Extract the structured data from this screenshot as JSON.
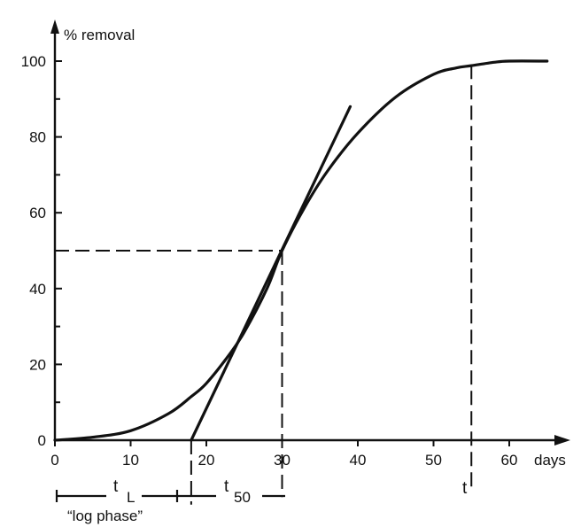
{
  "chart_data": {
    "type": "line",
    "title": "",
    "ylabel": "% removal",
    "xlabel": "days",
    "xlim": [
      0,
      67
    ],
    "ylim": [
      0,
      100
    ],
    "x_ticks": [
      0,
      10,
      20,
      30,
      40,
      50,
      60
    ],
    "x_tick_labels": [
      "0",
      "10",
      "20",
      "30",
      "40",
      "50",
      "60"
    ],
    "y_ticks": [
      0,
      20,
      40,
      60,
      80,
      100
    ],
    "y_tick_labels": [
      "0",
      "20",
      "40",
      "60",
      "80",
      "100"
    ],
    "y_minor_step": 10,
    "grid": false,
    "series": [
      {
        "x": [
          0,
          5,
          10,
          15,
          18,
          20,
          23,
          25,
          28,
          30,
          33,
          36,
          40,
          45,
          50,
          53,
          55,
          58,
          60,
          65
        ],
        "y": [
          0,
          0.8,
          2.5,
          7,
          11.5,
          15,
          22.5,
          28.5,
          40,
          50,
          61.5,
          71,
          81,
          90.5,
          96.5,
          98.2,
          98.8,
          99.7,
          100,
          100
        ]
      }
    ],
    "tangent_line": {
      "x": [
        18,
        39
      ],
      "y": [
        0,
        88
      ]
    },
    "reference_lines": [
      {
        "kind": "horizontal",
        "y": 50,
        "x_from": 0,
        "x_to": 30,
        "style": "dashed"
      },
      {
        "kind": "vertical",
        "x": 30,
        "y_from": 50,
        "y_to": -15,
        "style": "dashed"
      },
      {
        "kind": "vertical",
        "x": 18,
        "y_from": 0,
        "y_to": -17,
        "style": "dashed"
      },
      {
        "kind": "vertical",
        "x": 55,
        "y_from": 99,
        "y_to": -13,
        "style": "dashed"
      }
    ],
    "annotations": {
      "t_lag": {
        "main": "t",
        "sub": "L",
        "x_start": 0,
        "x_end": 18
      },
      "t_50": {
        "main": "t",
        "sub": "50",
        "x_start": 18,
        "x_end": 30
      },
      "t_end": {
        "main": "t",
        "x": 55
      },
      "phase_label": "“log  phase”"
    }
  }
}
